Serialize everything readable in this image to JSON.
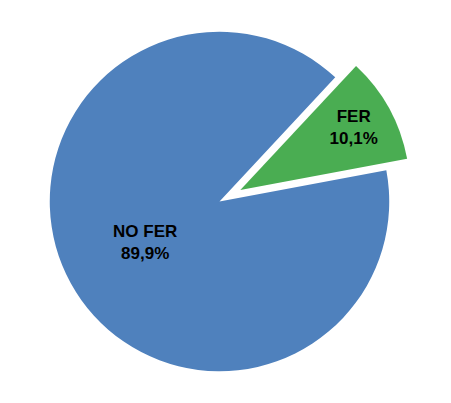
{
  "chart_data": {
    "type": "pie",
    "categories": [
      "FER",
      "NO FER"
    ],
    "values": [
      10.1,
      89.9
    ],
    "value_labels": [
      "10,1%",
      "89,9%"
    ],
    "colors": [
      "#4aad52",
      "#4f81bd"
    ],
    "data_labels": true
  }
}
